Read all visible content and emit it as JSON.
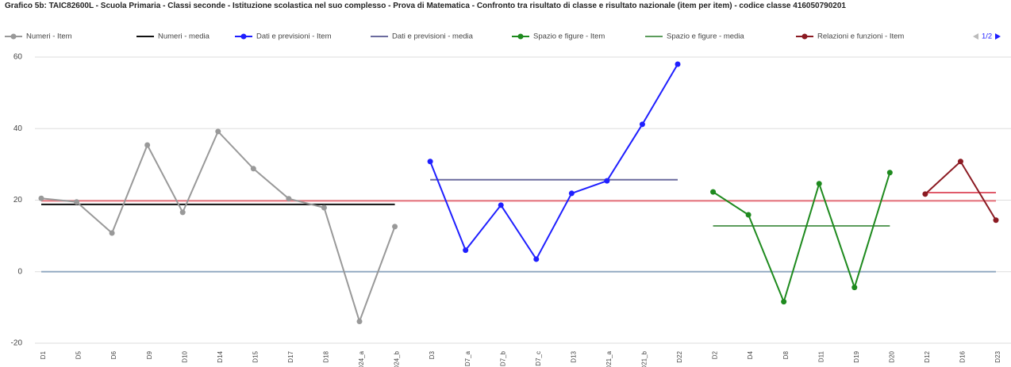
{
  "chart_data": {
    "type": "line",
    "title": "Grafico 5b: TAIC82600L - Scuola Primaria - Classi seconde - Istituzione scolastica nel suo complesso - Prova di Matematica - Confronto tra risultato di classe e risultato nazionale (item per item) - codice classe 416050790201",
    "legend_page": "1/2",
    "categories": [
      "D1",
      "D5",
      "D6",
      "D9",
      "D10",
      "D14",
      "D15",
      "D17",
      "D18",
      "D24_a",
      "D24_b",
      "D3",
      "D7_a",
      "D7_b",
      "D7_c",
      "D13",
      "D21_a",
      "D21_b",
      "D22",
      "D2",
      "D4",
      "D8",
      "D11",
      "D19",
      "D20",
      "D12",
      "D16",
      "D23"
    ],
    "ylim": [
      -20,
      60
    ],
    "yticks": [
      -20,
      0,
      20,
      40,
      60
    ],
    "grid": true,
    "series": [
      {
        "name": "Numeri - Item",
        "color": "#999999",
        "markers": true,
        "values": [
          20.5,
          19.5,
          10.8,
          35.4,
          16.6,
          39.2,
          28.8,
          20.4,
          17.9,
          -13.9,
          12.6,
          null,
          null,
          null,
          null,
          null,
          null,
          null,
          null,
          null,
          null,
          null,
          null,
          null,
          null,
          null,
          null,
          null
        ]
      },
      {
        "name": "Numeri - media",
        "color": "#111111",
        "markers": false,
        "values": [
          18.8,
          18.8,
          18.8,
          18.8,
          18.8,
          18.8,
          18.8,
          18.8,
          18.8,
          18.8,
          18.8,
          null,
          null,
          null,
          null,
          null,
          null,
          null,
          null,
          null,
          null,
          null,
          null,
          null,
          null,
          null,
          null,
          null
        ]
      },
      {
        "name": "Dati e previsioni - Item",
        "color": "#1f1fff",
        "markers": true,
        "values": [
          null,
          null,
          null,
          null,
          null,
          null,
          null,
          null,
          null,
          null,
          null,
          30.8,
          6,
          18.6,
          3.5,
          21.9,
          25.4,
          41.2,
          58,
          null,
          null,
          null,
          null,
          null,
          null,
          null,
          null,
          null
        ]
      },
      {
        "name": "Dati e previsioni - media",
        "color": "#6b6b9e",
        "markers": false,
        "values": [
          null,
          null,
          null,
          null,
          null,
          null,
          null,
          null,
          null,
          null,
          null,
          25.7,
          25.7,
          25.7,
          25.7,
          25.7,
          25.7,
          25.7,
          25.7,
          null,
          null,
          null,
          null,
          null,
          null,
          null,
          null,
          null
        ]
      },
      {
        "name": "Spazio e figure - Item",
        "color": "#1e8a1e",
        "markers": true,
        "values": [
          null,
          null,
          null,
          null,
          null,
          null,
          null,
          null,
          null,
          null,
          null,
          null,
          null,
          null,
          null,
          null,
          null,
          null,
          null,
          22.3,
          15.9,
          -8.4,
          24.6,
          -4.4,
          27.7,
          null,
          null,
          null
        ]
      },
      {
        "name": "Spazio e figure - media",
        "color": "#5c9c5c",
        "markers": false,
        "values": [
          null,
          null,
          null,
          null,
          null,
          null,
          null,
          null,
          null,
          null,
          null,
          null,
          null,
          null,
          null,
          null,
          null,
          null,
          null,
          12.8,
          12.8,
          12.8,
          12.8,
          12.8,
          12.8,
          null,
          null,
          null
        ]
      },
      {
        "name": "Relazioni e funzioni - Item",
        "color": "#8b1a22",
        "markers": true,
        "values": [
          null,
          null,
          null,
          null,
          null,
          null,
          null,
          null,
          null,
          null,
          null,
          null,
          null,
          null,
          null,
          null,
          null,
          null,
          null,
          null,
          null,
          null,
          null,
          null,
          null,
          21.7,
          30.8,
          14.4
        ]
      },
      {
        "color": "#e05a6a",
        "markers": false,
        "values": [
          null,
          null,
          null,
          null,
          null,
          null,
          null,
          null,
          null,
          null,
          null,
          null,
          null,
          null,
          null,
          null,
          null,
          null,
          null,
          null,
          null,
          null,
          null,
          null,
          null,
          22.1,
          22.1,
          22.1
        ]
      },
      {
        "color": "#e8727c",
        "markers": false,
        "values": [
          19.8,
          19.8,
          19.8,
          19.8,
          19.8,
          19.8,
          19.8,
          19.8,
          19.8,
          19.8,
          19.8,
          19.8,
          19.8,
          19.8,
          19.8,
          19.8,
          19.8,
          19.8,
          19.8,
          19.8,
          19.8,
          19.8,
          19.8,
          19.8,
          19.8,
          19.8,
          19.8,
          19.8
        ]
      },
      {
        "color": "#93aac2",
        "markers": false,
        "values": [
          0,
          0,
          0,
          0,
          0,
          0,
          0,
          0,
          0,
          0,
          0,
          0,
          0,
          0,
          0,
          0,
          0,
          0,
          0,
          0,
          0,
          0,
          0,
          0,
          0,
          0,
          0,
          0
        ]
      }
    ]
  }
}
